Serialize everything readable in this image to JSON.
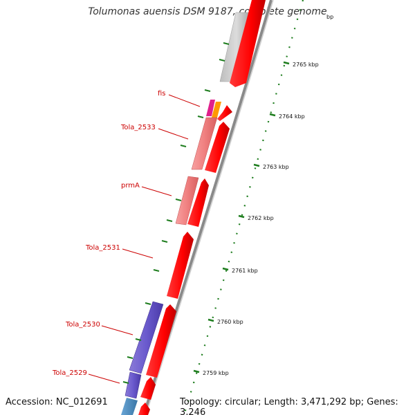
{
  "header": {
    "title": "Tolumonas auensis DSM 9187, complete genome"
  },
  "footer": {
    "accession": "Accession: NC_012691",
    "summary": "Topology: circular; Length: 3,471,292 bp; Genes: 3,246"
  },
  "scale_ticks": [
    "2765 kbp",
    "2764 kbp",
    "2763 kbp",
    "2762 kbp",
    "2761 kbp",
    "2760 kbp",
    "2759 kbp"
  ],
  "partial_tick_label": "bp",
  "gene_labels": [
    "fis",
    "Tola_2533",
    "prmA",
    "Tola_2531",
    "Tola_2530",
    "Tola_2529"
  ],
  "colors": {
    "cds": "#ff0000",
    "label": "#cc0000",
    "tick": "#1e7d1e",
    "backbone": "#8a8a8a"
  }
}
